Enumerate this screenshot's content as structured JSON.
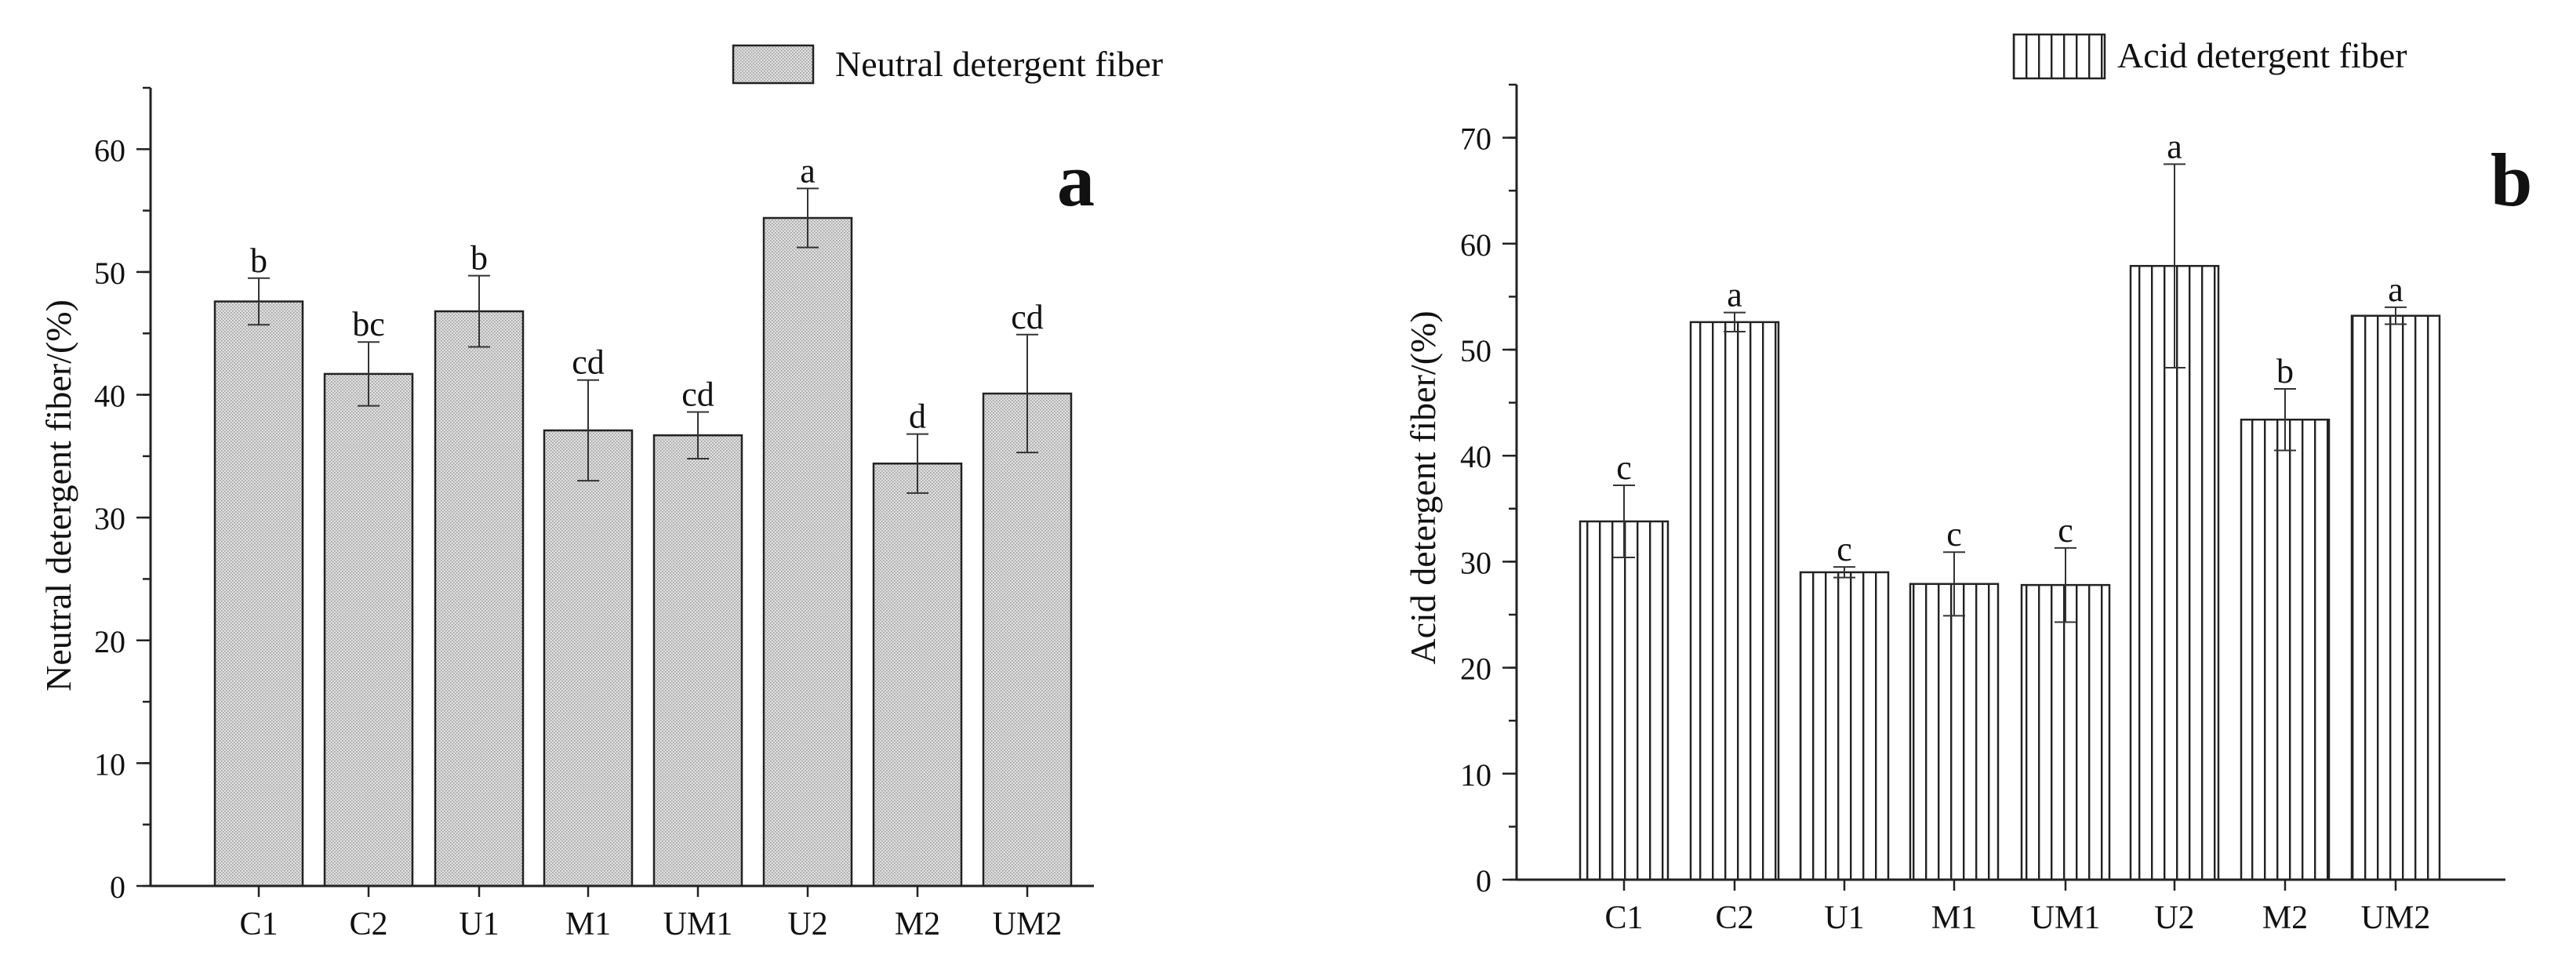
{
  "chart_data": [
    {
      "type": "bar",
      "panel_label": "a",
      "categories": [
        "C1",
        "C2",
        "U1",
        "M1",
        "UM1",
        "U2",
        "M2",
        "UM2"
      ],
      "values": [
        47.6,
        41.7,
        46.8,
        37.1,
        36.7,
        54.4,
        34.4,
        40.1
      ],
      "errors": [
        1.9,
        2.6,
        2.9,
        4.1,
        1.9,
        2.4,
        2.4,
        4.8
      ],
      "significance": [
        "b",
        "bc",
        "b",
        "cd",
        "cd",
        "a",
        "d",
        "cd"
      ],
      "legend": "Neutral detergent fiber",
      "legend_position": "top-right",
      "xlabel": "",
      "ylabel": "Neutral detergent fiber/(%)",
      "ylim": [
        0,
        65
      ],
      "yticks": [
        0,
        10,
        20,
        30,
        40,
        50,
        60
      ],
      "ytick_labels": [
        "0",
        "10",
        "20",
        "30",
        "40",
        "50",
        "60"
      ],
      "minor_tick_step": 5,
      "fill": "dotted-gray",
      "grid": false
    },
    {
      "type": "bar",
      "panel_label": "b",
      "categories": [
        "C1",
        "C2",
        "U1",
        "M1",
        "UM1",
        "U2",
        "M2",
        "UM2"
      ],
      "values": [
        33.8,
        52.6,
        29.0,
        27.9,
        27.8,
        57.9,
        43.4,
        53.2
      ],
      "errors": [
        3.4,
        0.9,
        0.5,
        3.0,
        3.5,
        9.6,
        2.9,
        0.8
      ],
      "significance": [
        "c",
        "a",
        "c",
        "c",
        "c",
        "a",
        "b",
        "a"
      ],
      "legend": "Acid detergent fiber",
      "legend_position": "top-right",
      "xlabel": "",
      "ylabel": "Acid detergent fiber/(%)",
      "ylim": [
        0,
        75
      ],
      "yticks": [
        0,
        10,
        20,
        30,
        40,
        50,
        60,
        70
      ],
      "ytick_labels": [
        "0",
        "10",
        "20",
        "30",
        "40",
        "50",
        "60",
        "70"
      ],
      "minor_tick_step": 5,
      "fill": "vertical-hatch",
      "grid": false
    }
  ]
}
